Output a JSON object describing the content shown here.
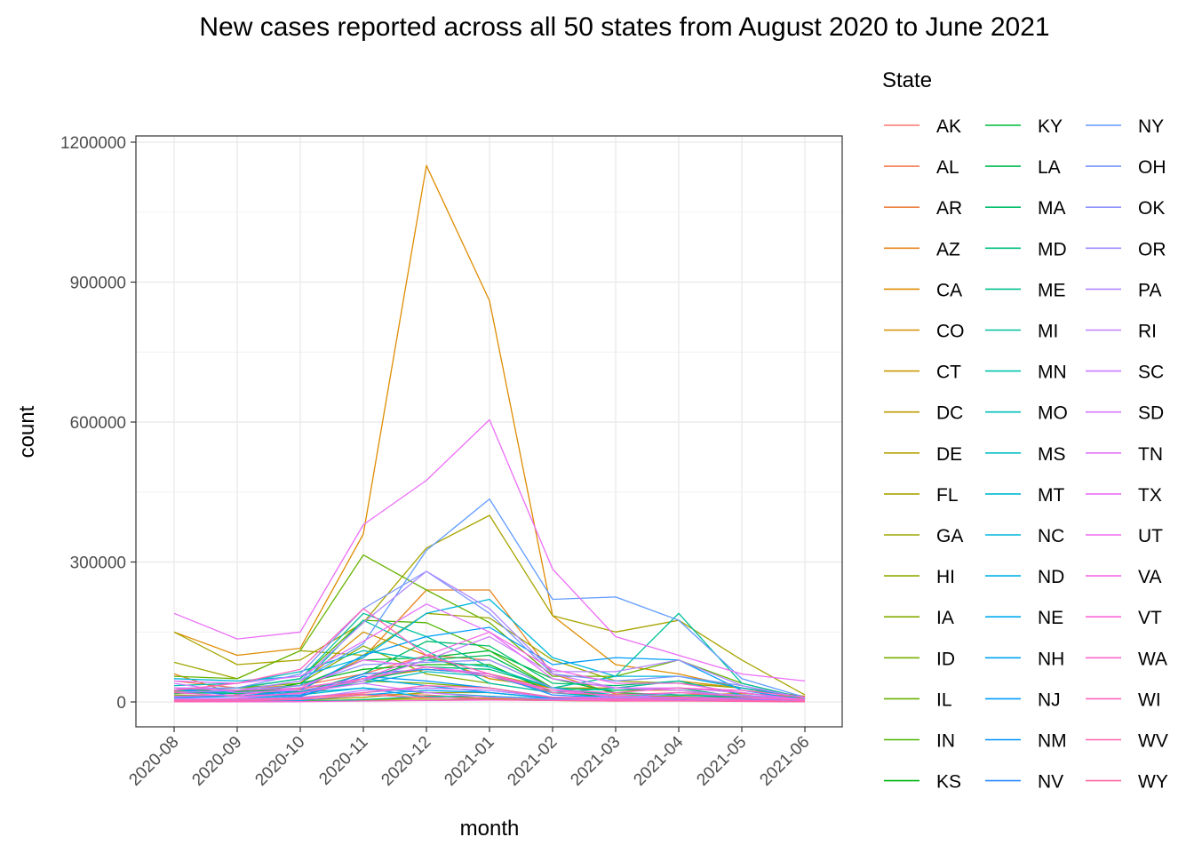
{
  "chart_data": {
    "type": "line",
    "title": "New cases reported across all 50 states from August 2020 to June 2021",
    "xlabel": "month",
    "ylabel": "count",
    "ylim": [
      -40000,
      1200000
    ],
    "y_ticks": [
      "0",
      "300000",
      "600000",
      "900000",
      "1200000"
    ],
    "y_tick_values": [
      0,
      300000,
      600000,
      900000,
      1200000
    ],
    "grid": true,
    "legend_title": "State",
    "legend_position": "right",
    "categories": [
      "2020-08",
      "2020-09",
      "2020-10",
      "2020-11",
      "2020-12",
      "2021-01",
      "2021-02",
      "2021-03",
      "2021-04",
      "2021-05",
      "2021-06"
    ],
    "series": [
      {
        "name": "AK",
        "color": "#F8766D",
        "values": [
          2500,
          2000,
          9000,
          17000,
          15000,
          6500,
          4000,
          6000,
          6000,
          4000,
          1500
        ]
      },
      {
        "name": "AL",
        "color": "#F47C55",
        "values": [
          45000,
          30000,
          35000,
          60000,
          100000,
          90000,
          30000,
          12000,
          10000,
          6000,
          3000
        ]
      },
      {
        "name": "AR",
        "color": "#EE8043",
        "values": [
          23000,
          24000,
          28000,
          50000,
          70000,
          60000,
          20000,
          10000,
          6000,
          6000,
          5000
        ]
      },
      {
        "name": "AZ",
        "color": "#E7851E",
        "values": [
          60000,
          16000,
          25000,
          95000,
          240000,
          240000,
          60000,
          17000,
          15000,
          18000,
          10000
        ]
      },
      {
        "name": "CA",
        "color": "#DE8C00",
        "values": [
          150000,
          100000,
          115000,
          360000,
          1150000,
          860000,
          185000,
          80000,
          60000,
          30000,
          12000
        ]
      },
      {
        "name": "CO",
        "color": "#D49000",
        "values": [
          12000,
          15000,
          40000,
          150000,
          100000,
          50000,
          30000,
          30000,
          45000,
          30000,
          6000
        ]
      },
      {
        "name": "CT",
        "color": "#C99700",
        "values": [
          2000,
          3000,
          12000,
          50000,
          70000,
          60000,
          30000,
          25000,
          25000,
          10000,
          2000
        ]
      },
      {
        "name": "DC",
        "color": "#BE9C00",
        "values": [
          2000,
          2000,
          2000,
          5000,
          8000,
          8000,
          4000,
          4000,
          3000,
          1500,
          500
        ]
      },
      {
        "name": "DE",
        "color": "#B3A000",
        "values": [
          3000,
          3000,
          4000,
          10000,
          20000,
          20000,
          8000,
          7000,
          8000,
          3000,
          1000
        ]
      },
      {
        "name": "FL",
        "color": "#A8A400",
        "values": [
          150000,
          80000,
          90000,
          170000,
          330000,
          400000,
          185000,
          150000,
          175000,
          90000,
          15000
        ]
      },
      {
        "name": "GA",
        "color": "#9DA700",
        "values": [
          85000,
          50000,
          110000,
          100000,
          190000,
          180000,
          90000,
          45000,
          40000,
          30000,
          10000
        ]
      },
      {
        "name": "HI",
        "color": "#91AA00",
        "values": [
          4000,
          5000,
          3000,
          3000,
          4000,
          5000,
          3000,
          2000,
          3000,
          2000,
          1000
        ]
      },
      {
        "name": "IA",
        "color": "#85AD00",
        "values": [
          25000,
          30000,
          40000,
          120000,
          60000,
          40000,
          20000,
          12000,
          12000,
          6000,
          2000
        ]
      },
      {
        "name": "ID",
        "color": "#77B000",
        "values": [
          15000,
          12000,
          20000,
          45000,
          40000,
          30000,
          10000,
          8000,
          10000,
          6000,
          2000
        ]
      },
      {
        "name": "IL",
        "color": "#68B300",
        "values": [
          55000,
          50000,
          110000,
          315000,
          240000,
          170000,
          55000,
          55000,
          90000,
          40000,
          8000
        ]
      },
      {
        "name": "IN",
        "color": "#4FB600",
        "values": [
          25000,
          30000,
          50000,
          175000,
          170000,
          110000,
          30000,
          25000,
          30000,
          20000,
          5000
        ]
      },
      {
        "name": "KS",
        "color": "#00B813",
        "values": [
          12000,
          15000,
          40000,
          70000,
          80000,
          80000,
          20000,
          10000,
          8000,
          6000,
          2000
        ]
      },
      {
        "name": "KY",
        "color": "#00BA38",
        "values": [
          18000,
          22000,
          35000,
          90000,
          95000,
          110000,
          50000,
          20000,
          15000,
          10000,
          4000
        ]
      },
      {
        "name": "LA",
        "color": "#00BC54",
        "values": [
          30000,
          20000,
          30000,
          50000,
          90000,
          100000,
          30000,
          12000,
          10000,
          10000,
          5000
        ]
      },
      {
        "name": "MA",
        "color": "#00BE6C",
        "values": [
          10000,
          12000,
          20000,
          60000,
          130000,
          120000,
          40000,
          35000,
          45000,
          15000,
          3000
        ]
      },
      {
        "name": "MD",
        "color": "#00BF7D",
        "values": [
          20000,
          18000,
          22000,
          45000,
          75000,
          70000,
          30000,
          25000,
          30000,
          10000,
          3000
        ]
      },
      {
        "name": "ME",
        "color": "#00C08E",
        "values": [
          500,
          500,
          1000,
          5000,
          12000,
          12000,
          5000,
          4000,
          6000,
          3000,
          500
        ]
      },
      {
        "name": "MI",
        "color": "#00C09C",
        "values": [
          25000,
          30000,
          50000,
          190000,
          140000,
          75000,
          30000,
          55000,
          190000,
          40000,
          8000
        ]
      },
      {
        "name": "MN",
        "color": "#00C1AA",
        "values": [
          20000,
          25000,
          35000,
          175000,
          110000,
          40000,
          20000,
          30000,
          45000,
          15000,
          3000
        ]
      },
      {
        "name": "MO",
        "color": "#00BFB7",
        "values": [
          35000,
          40000,
          65000,
          110000,
          90000,
          75000,
          30000,
          15000,
          15000,
          12000,
          10000
        ]
      },
      {
        "name": "MS",
        "color": "#00BDC4",
        "values": [
          25000,
          20000,
          25000,
          40000,
          65000,
          55000,
          20000,
          8000,
          6000,
          5000,
          2000
        ]
      },
      {
        "name": "MT",
        "color": "#00BAD0",
        "values": [
          5000,
          6000,
          15000,
          30000,
          20000,
          12000,
          7000,
          5000,
          5000,
          3000,
          1000
        ]
      },
      {
        "name": "NC",
        "color": "#00B6DC",
        "values": [
          50000,
          45000,
          55000,
          95000,
          190000,
          220000,
          95000,
          55000,
          55000,
          30000,
          10000
        ]
      },
      {
        "name": "ND",
        "color": "#00B1E5",
        "values": [
          3000,
          6000,
          20000,
          30000,
          10000,
          5000,
          3000,
          3000,
          4000,
          2000,
          500
        ]
      },
      {
        "name": "NE",
        "color": "#00ABEE",
        "values": [
          10000,
          12000,
          20000,
          50000,
          35000,
          20000,
          8000,
          6000,
          6000,
          4000,
          1000
        ]
      },
      {
        "name": "NH",
        "color": "#00A4F5",
        "values": [
          1000,
          1000,
          3000,
          15000,
          25000,
          20000,
          8000,
          8000,
          10000,
          4000,
          500
        ]
      },
      {
        "name": "NJ",
        "color": "#009DFA",
        "values": [
          10000,
          12000,
          25000,
          100000,
          140000,
          160000,
          80000,
          95000,
          90000,
          25000,
          4000
        ]
      },
      {
        "name": "NM",
        "color": "#0094FD",
        "values": [
          5000,
          4000,
          12000,
          55000,
          45000,
          30000,
          10000,
          5000,
          5000,
          4000,
          2000
        ]
      },
      {
        "name": "NV",
        "color": "#2C8CFF",
        "values": [
          30000,
          12000,
          15000,
          60000,
          70000,
          60000,
          15000,
          8000,
          8000,
          6000,
          4000
        ]
      },
      {
        "name": "NY",
        "color": "#619CFF",
        "values": [
          20000,
          25000,
          45000,
          125000,
          325000,
          435000,
          220000,
          225000,
          175000,
          50000,
          10000
        ]
      },
      {
        "name": "OH",
        "color": "#7A96FF",
        "values": [
          30000,
          30000,
          60000,
          200000,
          280000,
          190000,
          60000,
          45000,
          55000,
          35000,
          8000
        ]
      },
      {
        "name": "OK",
        "color": "#8F91FF",
        "values": [
          20000,
          25000,
          35000,
          80000,
          85000,
          90000,
          30000,
          8000,
          6000,
          4000,
          2000
        ]
      },
      {
        "name": "OR",
        "color": "#A08BFF",
        "values": [
          8000,
          7000,
          10000,
          20000,
          30000,
          25000,
          10000,
          7000,
          20000,
          15000,
          5000
        ]
      },
      {
        "name": "PA",
        "color": "#B186FF",
        "values": [
          20000,
          25000,
          45000,
          170000,
          280000,
          200000,
          65000,
          65000,
          90000,
          35000,
          8000
        ]
      },
      {
        "name": "RI",
        "color": "#BF80FF",
        "values": [
          3000,
          3000,
          6000,
          25000,
          30000,
          25000,
          10000,
          10000,
          10000,
          4000,
          500
        ]
      },
      {
        "name": "SC",
        "color": "#CC7BFF",
        "values": [
          40000,
          20000,
          25000,
          45000,
          90000,
          140000,
          60000,
          30000,
          25000,
          12000,
          3000
        ]
      },
      {
        "name": "SD",
        "color": "#D876FF",
        "values": [
          5000,
          8000,
          20000,
          40000,
          20000,
          10000,
          6000,
          5000,
          6000,
          3000,
          500
        ]
      },
      {
        "name": "TN",
        "color": "#E272FD",
        "values": [
          45000,
          40000,
          55000,
          130000,
          210000,
          150000,
          50000,
          30000,
          30000,
          20000,
          5000
        ]
      },
      {
        "name": "TX",
        "color": "#EB6EF6",
        "values": [
          190000,
          135000,
          150000,
          380000,
          475000,
          605000,
          285000,
          140000,
          100000,
          60000,
          45000
        ]
      },
      {
        "name": "UT",
        "color": "#F16BEE",
        "values": [
          12000,
          15000,
          30000,
          90000,
          75000,
          60000,
          25000,
          12000,
          10000,
          8000,
          4000
        ]
      },
      {
        "name": "VA",
        "color": "#F668E4",
        "values": [
          30000,
          25000,
          30000,
          50000,
          100000,
          150000,
          70000,
          40000,
          40000,
          20000,
          3000
        ]
      },
      {
        "name": "VT",
        "color": "#F967D9",
        "values": [
          200,
          300,
          500,
          2000,
          3000,
          4000,
          3000,
          4000,
          3000,
          1000,
          200
        ]
      },
      {
        "name": "WA",
        "color": "#FC66CC",
        "values": [
          20000,
          12000,
          18000,
          50000,
          75000,
          55000,
          25000,
          20000,
          30000,
          25000,
          10000
        ]
      },
      {
        "name": "WI",
        "color": "#FF65BF",
        "values": [
          25000,
          40000,
          70000,
          200000,
          100000,
          60000,
          20000,
          15000,
          20000,
          12000,
          3000
        ]
      },
      {
        "name": "WV",
        "color": "#FF66B0",
        "values": [
          4000,
          5000,
          8000,
          20000,
          35000,
          30000,
          10000,
          6000,
          7000,
          4000,
          1000
        ]
      },
      {
        "name": "WY",
        "color": "#FF67A4",
        "values": [
          1500,
          2000,
          5000,
          15000,
          10000,
          5000,
          3000,
          2000,
          2000,
          1500,
          500
        ]
      }
    ]
  }
}
